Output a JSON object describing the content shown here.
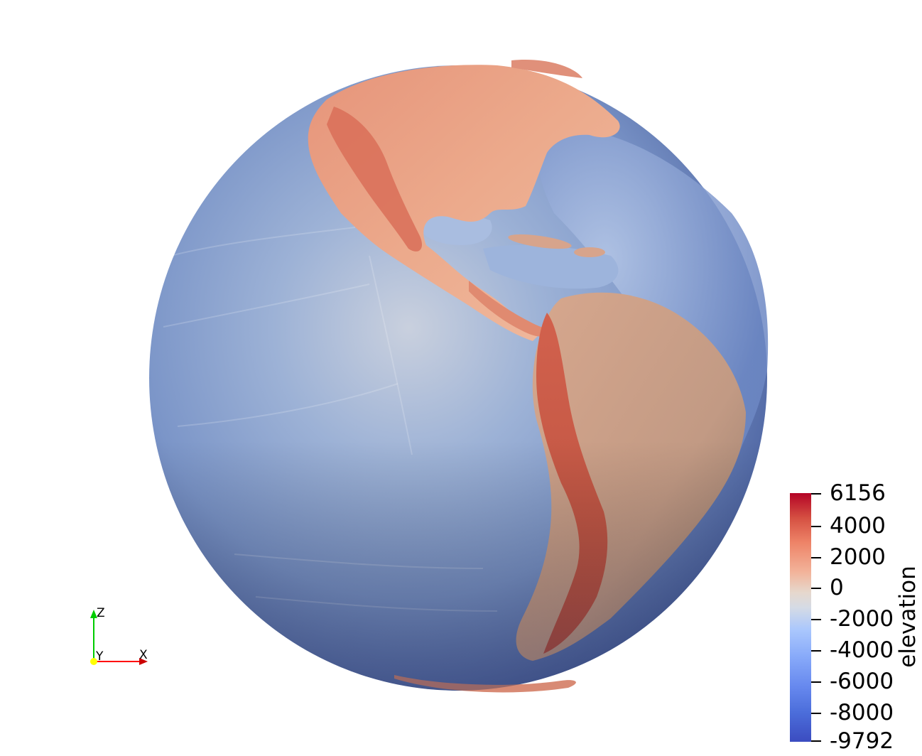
{
  "scene": {
    "colormap_colors": {
      "ocean_deep": "#3b4cc0",
      "ocean_mid": "#6f92f3",
      "ocean_shallow": "#aac7fd",
      "neutral": "#dddcdc",
      "land_low": "#e8a68a",
      "land_high": "#d14b40",
      "land_peak": "#b40426"
    }
  },
  "colorbar": {
    "title": "elevation",
    "ticks": [
      "6156",
      "4000",
      "2000",
      "0",
      "-2000",
      "-4000",
      "-6000",
      "-8000",
      "-9792"
    ],
    "range": [
      -9792,
      6156
    ]
  },
  "axes": {
    "x_label": "X",
    "y_label": "Y",
    "z_label": "Z",
    "x_color": "#ff0000",
    "y_color": "#ffff00",
    "z_color": "#00cc00"
  }
}
